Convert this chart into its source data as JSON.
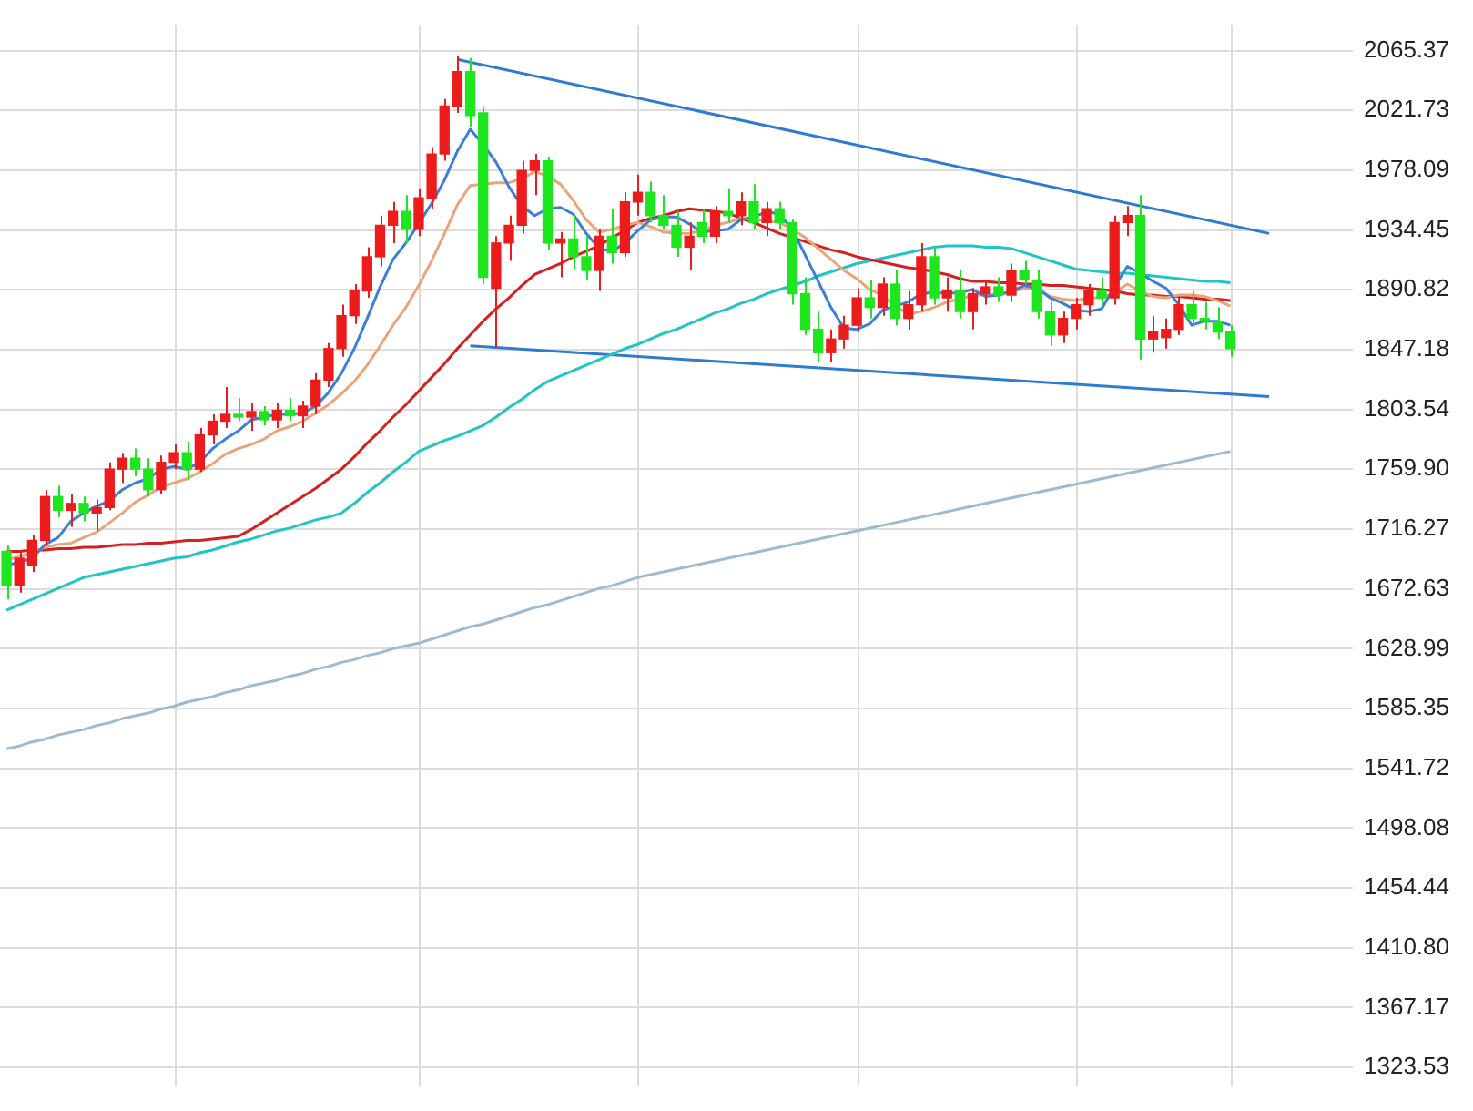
{
  "chart_data": {
    "type": "candlestick",
    "categories": [
      null,
      null,
      null,
      null,
      null,
      null,
      null,
      null,
      null,
      null,
      null,
      null,
      null,
      null,
      null,
      null,
      null,
      null,
      null,
      null,
      null,
      null,
      null,
      null,
      null,
      null,
      null,
      null,
      null,
      null,
      null,
      null,
      null,
      null,
      null,
      null,
      null,
      null,
      null,
      null,
      null,
      null,
      null,
      null,
      null,
      null,
      null,
      null,
      null,
      null,
      null,
      null,
      null,
      null,
      null,
      null,
      null,
      null,
      null,
      null,
      null,
      null,
      null,
      null,
      null,
      null,
      null,
      null,
      null,
      null,
      null,
      null,
      null,
      null,
      null,
      null,
      null,
      null,
      null,
      null,
      null,
      null,
      null,
      null,
      null,
      null,
      null,
      null,
      null,
      null,
      null,
      null,
      null,
      null,
      null,
      null,
      null,
      null,
      null,
      null,
      null,
      null,
      null,
      null,
      null
    ],
    "ohlc": [
      [
        1700,
        1705,
        1665,
        1675
      ],
      [
        1675,
        1700,
        1670,
        1695
      ],
      [
        1690,
        1712,
        1685,
        1708
      ],
      [
        1708,
        1745,
        1705,
        1740
      ],
      [
        1740,
        1748,
        1725,
        1730
      ],
      [
        1730,
        1742,
        1718,
        1735
      ],
      [
        1735,
        1740,
        1722,
        1728
      ],
      [
        1728,
        1738,
        1715,
        1732
      ],
      [
        1732,
        1765,
        1730,
        1760
      ],
      [
        1760,
        1772,
        1750,
        1768
      ],
      [
        1768,
        1775,
        1755,
        1760
      ],
      [
        1760,
        1768,
        1740,
        1745
      ],
      [
        1745,
        1770,
        1742,
        1765
      ],
      [
        1765,
        1778,
        1760,
        1772
      ],
      [
        1772,
        1780,
        1752,
        1760
      ],
      [
        1760,
        1790,
        1758,
        1785
      ],
      [
        1785,
        1800,
        1778,
        1795
      ],
      [
        1795,
        1820,
        1790,
        1800
      ],
      [
        1800,
        1812,
        1795,
        1798
      ],
      [
        1798,
        1808,
        1788,
        1802
      ],
      [
        1802,
        1806,
        1792,
        1796
      ],
      [
        1796,
        1808,
        1790,
        1803
      ],
      [
        1803,
        1812,
        1795,
        1799
      ],
      [
        1799,
        1810,
        1790,
        1806
      ],
      [
        1806,
        1830,
        1800,
        1825
      ],
      [
        1825,
        1852,
        1820,
        1848
      ],
      [
        1848,
        1880,
        1842,
        1872
      ],
      [
        1872,
        1895,
        1866,
        1890
      ],
      [
        1890,
        1922,
        1885,
        1915
      ],
      [
        1915,
        1945,
        1908,
        1938
      ],
      [
        1938,
        1955,
        1925,
        1948
      ],
      [
        1948,
        1960,
        1925,
        1935
      ],
      [
        1935,
        1965,
        1930,
        1958
      ],
      [
        1958,
        1995,
        1950,
        1990
      ],
      [
        1990,
        2030,
        1985,
        2025
      ],
      [
        2025,
        2062,
        2020,
        2050
      ],
      [
        2050,
        2060,
        2010,
        2018
      ],
      [
        2020,
        2025,
        1895,
        1900
      ],
      [
        1892,
        1930,
        1849,
        1925
      ],
      [
        1925,
        1945,
        1912,
        1938
      ],
      [
        1938,
        1985,
        1932,
        1978
      ],
      [
        1978,
        1990,
        1960,
        1985
      ],
      [
        1985,
        1988,
        1920,
        1925
      ],
      [
        1925,
        1933,
        1900,
        1928
      ],
      [
        1928,
        1945,
        1905,
        1915
      ],
      [
        1915,
        1930,
        1898,
        1905
      ],
      [
        1905,
        1935,
        1890,
        1930
      ],
      [
        1930,
        1950,
        1910,
        1918
      ],
      [
        1918,
        1962,
        1915,
        1955
      ],
      [
        1955,
        1975,
        1945,
        1962
      ],
      [
        1962,
        1970,
        1940,
        1945
      ],
      [
        1945,
        1960,
        1935,
        1938
      ],
      [
        1938,
        1948,
        1915,
        1922
      ],
      [
        1922,
        1940,
        1905,
        1930
      ],
      [
        1940,
        1950,
        1925,
        1930
      ],
      [
        1930,
        1952,
        1925,
        1948
      ],
      [
        1948,
        1965,
        1940,
        1945
      ],
      [
        1945,
        1962,
        1938,
        1955
      ],
      [
        1955,
        1968,
        1935,
        1940
      ],
      [
        1940,
        1955,
        1930,
        1950
      ],
      [
        1950,
        1955,
        1935,
        1940
      ],
      [
        1940,
        1942,
        1880,
        1888
      ],
      [
        1888,
        1900,
        1858,
        1862
      ],
      [
        1862,
        1875,
        1838,
        1845
      ],
      [
        1845,
        1862,
        1838,
        1855
      ],
      [
        1855,
        1872,
        1848,
        1865
      ],
      [
        1865,
        1892,
        1860,
        1885
      ],
      [
        1885,
        1898,
        1870,
        1878
      ],
      [
        1878,
        1900,
        1872,
        1895
      ],
      [
        1895,
        1905,
        1865,
        1870
      ],
      [
        1870,
        1890,
        1862,
        1880
      ],
      [
        1880,
        1925,
        1875,
        1915
      ],
      [
        1915,
        1922,
        1880,
        1885
      ],
      [
        1885,
        1900,
        1875,
        1890
      ],
      [
        1890,
        1905,
        1870,
        1875
      ],
      [
        1875,
        1892,
        1862,
        1888
      ],
      [
        1888,
        1898,
        1880,
        1893
      ],
      [
        1893,
        1900,
        1882,
        1887
      ],
      [
        1887,
        1910,
        1882,
        1905
      ],
      [
        1905,
        1912,
        1895,
        1898
      ],
      [
        1898,
        1905,
        1870,
        1875
      ],
      [
        1875,
        1882,
        1850,
        1858
      ],
      [
        1858,
        1875,
        1852,
        1870
      ],
      [
        1870,
        1885,
        1862,
        1880
      ],
      [
        1880,
        1895,
        1872,
        1890
      ],
      [
        1890,
        1900,
        1880,
        1885
      ],
      [
        1885,
        1945,
        1880,
        1940
      ],
      [
        1940,
        1952,
        1930,
        1945
      ],
      [
        1945,
        1960,
        1840,
        1855
      ],
      [
        1855,
        1872,
        1845,
        1860
      ],
      [
        1856,
        1870,
        1848,
        1862
      ],
      [
        1862,
        1885,
        1858,
        1880
      ],
      [
        1880,
        1890,
        1865,
        1870
      ],
      [
        1870,
        1882,
        1862,
        1868
      ],
      [
        1868,
        1878,
        1855,
        1860
      ],
      [
        1860,
        1865,
        1842,
        1848
      ],
      null,
      null,
      null,
      null,
      null,
      null,
      null,
      null,
      null
    ],
    "series": [
      {
        "type": "line",
        "color": "#3b7fd6",
        "values": [
          1690,
          1692,
          1695,
          1705,
          1710,
          1722,
          1728,
          1733,
          1737,
          1745,
          1750,
          1753,
          1760,
          1762,
          1760,
          1765,
          1775,
          1782,
          1788,
          1796,
          1798,
          1800,
          1800,
          1801,
          1806,
          1816,
          1830,
          1848,
          1870,
          1893,
          1913,
          1925,
          1939,
          1954,
          1971,
          1992,
          2008,
          1997,
          1984,
          1966,
          1952,
          1945,
          1950,
          1951,
          1946,
          1932,
          1921,
          1919,
          1925,
          1934,
          1942,
          1944,
          1944,
          1939,
          1933,
          1934,
          1935,
          1942,
          1944,
          1948,
          1946,
          1935,
          1916,
          1897,
          1878,
          1863,
          1862,
          1866,
          1876,
          1879,
          1882,
          1888,
          1889,
          1888,
          1889,
          1891,
          1886,
          1887,
          1890,
          1894,
          1892,
          1885,
          1881,
          1876,
          1875,
          1877,
          1893,
          1908,
          1903,
          1897,
          1892,
          1880,
          1865,
          1868,
          1868,
          1865,
          null,
          null,
          null,
          null,
          null,
          null,
          null,
          null,
          null
        ]
      },
      {
        "type": "line",
        "color": "#e8a57a",
        "values": [
          1694,
          1696,
          1699,
          1703,
          1705,
          1706,
          1710,
          1714,
          1721,
          1728,
          1736,
          1741,
          1747,
          1750,
          1753,
          1758,
          1764,
          1771,
          1775,
          1778,
          1782,
          1788,
          1791,
          1795,
          1801,
          1807,
          1815,
          1824,
          1836,
          1850,
          1865,
          1878,
          1894,
          1912,
          1932,
          1953,
          1967,
          1968,
          1969,
          1969,
          1972,
          1977,
          1974,
          1968,
          1956,
          1942,
          1933,
          1935,
          1938,
          1940,
          1937,
          1933,
          1932,
          1932,
          1934,
          1938,
          1940,
          1943,
          1942,
          1941,
          1940,
          1935,
          1929,
          1921,
          1913,
          1905,
          1899,
          1891,
          1887,
          1879,
          1873,
          1875,
          1878,
          1882,
          1884,
          1887,
          1887,
          1888,
          1889,
          1892,
          1892,
          1886,
          1884,
          1883,
          1885,
          1885,
          1889,
          1895,
          1890,
          1886,
          1885,
          1887,
          1887,
          1886,
          1883,
          1879,
          null,
          null,
          null,
          null,
          null,
          null,
          null,
          null,
          null
        ]
      },
      {
        "type": "line",
        "color": "#d42020",
        "values": [
          1700,
          1700,
          1701,
          1701,
          1702,
          1702,
          1703,
          1703,
          1704,
          1705,
          1705,
          1706,
          1706,
          1707,
          1708,
          1708,
          1709,
          1710,
          1711,
          1716,
          1722,
          1728,
          1734,
          1740,
          1746,
          1753,
          1760,
          1769,
          1779,
          1788,
          1798,
          1807,
          1817,
          1827,
          1837,
          1848,
          1858,
          1868,
          1877,
          1885,
          1894,
          1902,
          1906,
          1910,
          1915,
          1919,
          1923,
          1929,
          1934,
          1940,
          1943,
          1945,
          1948,
          1950,
          1949,
          1948,
          1947,
          1943,
          1940,
          1936,
          1932,
          1929,
          1926,
          1923,
          1920,
          1918,
          1915,
          1913,
          1911,
          1909,
          1907,
          1906,
          1904,
          1902,
          1899,
          1897,
          1897,
          1896,
          1896,
          1895,
          1895,
          1894,
          1894,
          1893,
          1892,
          1891,
          1890,
          1888,
          1887,
          1887,
          1886,
          1886,
          1885,
          1884,
          1884,
          1883,
          null,
          null,
          null,
          null,
          null,
          null,
          null,
          null,
          null
        ]
      },
      {
        "type": "line",
        "color": "#22c4c4",
        "values": [
          1657,
          1661,
          1665,
          1669,
          1673,
          1677,
          1681,
          1683,
          1685,
          1687,
          1689,
          1691,
          1693,
          1695,
          1696,
          1699,
          1701,
          1704,
          1707,
          1709,
          1712,
          1715,
          1717,
          1720,
          1723,
          1725,
          1728,
          1735,
          1743,
          1750,
          1758,
          1765,
          1773,
          1777,
          1781,
          1784,
          1788,
          1792,
          1798,
          1805,
          1811,
          1818,
          1824,
          1828,
          1832,
          1836,
          1840,
          1844,
          1848,
          1851,
          1855,
          1859,
          1862,
          1866,
          1870,
          1874,
          1877,
          1881,
          1884,
          1888,
          1891,
          1894,
          1897,
          1901,
          1904,
          1907,
          1910,
          1912,
          1914,
          1916,
          1918,
          1920,
          1922,
          1923,
          1923,
          1923,
          1922,
          1922,
          1921,
          1918,
          1915,
          1912,
          1909,
          1906,
          1905,
          1904,
          1903,
          1903,
          1902,
          1901,
          1900,
          1899,
          1898,
          1897,
          1897,
          1896,
          null,
          null,
          null,
          null,
          null,
          null,
          null,
          null,
          null
        ]
      },
      {
        "type": "line",
        "color": "#9dbbd0",
        "values": [
          1556,
          1558,
          1561,
          1563,
          1566,
          1568,
          1570,
          1573,
          1575,
          1578,
          1580,
          1582,
          1585,
          1587,
          1590,
          1592,
          1594,
          1597,
          1599,
          1602,
          1604,
          1606,
          1609,
          1611,
          1614,
          1616,
          1619,
          1621,
          1624,
          1626,
          1629,
          1631,
          1633,
          1636,
          1639,
          1642,
          1645,
          1647,
          1650,
          1653,
          1656,
          1659,
          1661,
          1664,
          1667,
          1670,
          1673,
          1675,
          1678,
          1681,
          1683,
          1685,
          1687,
          1689,
          1691,
          1693,
          1695,
          1697,
          1699,
          1701,
          1703,
          1705,
          1707,
          1709,
          1711,
          1713,
          1715,
          1717,
          1719,
          1721,
          1723,
          1725,
          1727,
          1729,
          1731,
          1733,
          1735,
          1737,
          1739,
          1741,
          1743,
          1745,
          1747,
          1749,
          1751,
          1753,
          1755,
          1757,
          1759,
          1761,
          1763,
          1765,
          1767,
          1769,
          1771,
          1773,
          null,
          null,
          null,
          null,
          null,
          null,
          null,
          null,
          null
        ]
      },
      {
        "type": "line",
        "color": "#2f7bd0",
        "values": [
          null,
          null,
          null,
          null,
          null,
          null,
          null,
          null,
          null,
          null,
          null,
          null,
          null,
          null,
          null,
          null,
          null,
          null,
          null,
          null,
          null,
          null,
          null,
          null,
          null,
          null,
          null,
          null,
          null,
          null,
          null,
          null,
          null,
          null,
          null,
          2059,
          null,
          null,
          null,
          null,
          null,
          null,
          null,
          null,
          null,
          null,
          null,
          null,
          null,
          null,
          null,
          null,
          null,
          null,
          null,
          null,
          null,
          null,
          null,
          null,
          null,
          null,
          null,
          null,
          null,
          null,
          null,
          null,
          null,
          null,
          null,
          null,
          null,
          null,
          null,
          null,
          null,
          null,
          null,
          null,
          null,
          null,
          null,
          null,
          null,
          null,
          null,
          null,
          null,
          null,
          null,
          null,
          null,
          null,
          null,
          null,
          null,
          null,
          1932,
          null,
          null,
          null,
          null,
          null,
          null
        ]
      },
      {
        "type": "line",
        "color": "#2f7bd0",
        "values": [
          null,
          null,
          null,
          null,
          null,
          null,
          null,
          null,
          null,
          null,
          null,
          null,
          null,
          null,
          null,
          null,
          null,
          null,
          null,
          null,
          null,
          null,
          null,
          null,
          null,
          null,
          null,
          null,
          null,
          null,
          null,
          null,
          null,
          null,
          null,
          null,
          1850,
          null,
          null,
          null,
          null,
          null,
          null,
          null,
          null,
          null,
          null,
          null,
          null,
          null,
          null,
          null,
          null,
          null,
          null,
          null,
          null,
          null,
          null,
          null,
          null,
          null,
          null,
          null,
          null,
          null,
          null,
          null,
          null,
          null,
          null,
          null,
          null,
          null,
          null,
          null,
          null,
          null,
          null,
          null,
          null,
          null,
          null,
          null,
          null,
          null,
          null,
          null,
          null,
          null,
          null,
          null,
          null,
          null,
          null,
          null,
          null,
          null,
          1813,
          null,
          null,
          null,
          null,
          null,
          null
        ]
      }
    ],
    "ylim": [
      1310,
      2084
    ],
    "yticks": [
      2065.37,
      2021.73,
      1978.09,
      1934.45,
      1890.82,
      1847.18,
      1803.54,
      {
        "value": 1759.9,
        "label": "1759.90"
      },
      1716.27,
      1672.63,
      1628.99,
      1585.35,
      1541.72,
      1498.08,
      1454.44,
      {
        "value": 1410.8,
        "label": "1410.80"
      },
      1367.17,
      1323.53
    ],
    "grid": true,
    "legend": false,
    "marker": "none",
    "tick_labels": "y"
  }
}
